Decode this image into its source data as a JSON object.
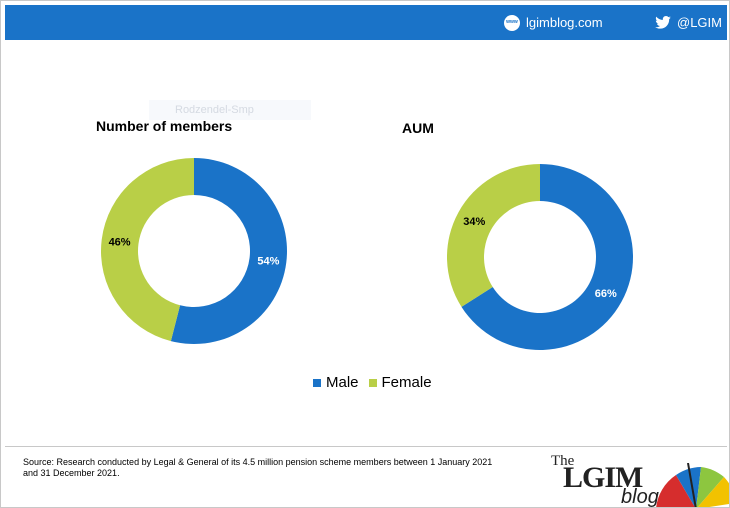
{
  "header": {
    "site_label": "lgimblog.com",
    "handle_label": "@LGIM"
  },
  "ghost_text": "Rodzendel-Smp",
  "colors": {
    "male": "#1a73c8",
    "female": "#b9cf47",
    "header": "#1a73c8"
  },
  "chart_data": [
    {
      "type": "pie",
      "variant": "donut",
      "title": "Number of members",
      "categories": [
        "Male",
        "Female"
      ],
      "values": [
        54,
        46
      ],
      "labels": [
        "54%",
        "46%"
      ]
    },
    {
      "type": "pie",
      "variant": "donut",
      "title": "AUM",
      "categories": [
        "Male",
        "Female"
      ],
      "values": [
        66,
        34
      ],
      "labels": [
        "66%",
        "34%"
      ]
    }
  ],
  "legend": {
    "placement": "bottom-center",
    "items": [
      {
        "label": "Male"
      },
      {
        "label": "Female"
      }
    ]
  },
  "footer": {
    "source": "Source: Research conducted by Legal & General of its 4.5 million pension scheme members between 1 January 2021 and 31 December 2021.",
    "logo_the": "The",
    "logo_lgim": "LGIM",
    "logo_blog": "blog"
  }
}
